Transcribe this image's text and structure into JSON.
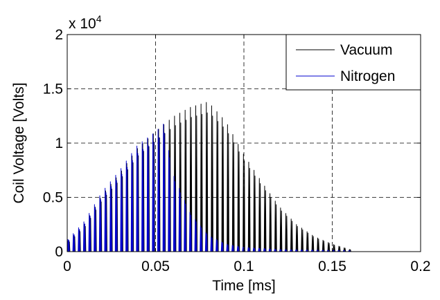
{
  "chart_data": {
    "type": "line",
    "xlabel": "Time [ms]",
    "ylabel": "Coil Voltage [Volts]",
    "y_multiplier_label": "x 10",
    "y_multiplier_exponent": "4",
    "xlim": [
      0,
      0.2
    ],
    "ylim": [
      0,
      2
    ],
    "x_ticks": [
      "0",
      "0.05",
      "0.1",
      "0.15",
      "0.2"
    ],
    "y_ticks": [
      "0",
      "0.5",
      "1",
      "1.5",
      "2"
    ],
    "x_tick_values": [
      0,
      0.05,
      0.1,
      0.15,
      0.2
    ],
    "y_tick_values": [
      0,
      0.5,
      1,
      1.5,
      2
    ],
    "grid": true,
    "grid_style": "dashed",
    "legend_position": "top-right",
    "series": [
      {
        "name": "Vacuum",
        "color": "#000000",
        "pulse_period": 0.003,
        "pulse_start": 0.001,
        "pulse_end": 0.162,
        "envelope": [
          [
            0.0,
            0.08
          ],
          [
            0.01,
            0.25
          ],
          [
            0.02,
            0.52
          ],
          [
            0.03,
            0.72
          ],
          [
            0.04,
            0.95
          ],
          [
            0.05,
            1.1
          ],
          [
            0.06,
            1.24
          ],
          [
            0.07,
            1.33
          ],
          [
            0.08,
            1.38
          ],
          [
            0.09,
            1.2
          ],
          [
            0.1,
            0.9
          ],
          [
            0.11,
            0.65
          ],
          [
            0.12,
            0.42
          ],
          [
            0.13,
            0.25
          ],
          [
            0.14,
            0.14
          ],
          [
            0.15,
            0.07
          ],
          [
            0.16,
            0.02
          ]
        ]
      },
      {
        "name": "Nitrogen",
        "color": "#0000cc",
        "pulse_period": 0.003,
        "pulse_start": 0.0007,
        "pulse_end": 0.16,
        "envelope": [
          [
            0.0,
            0.1
          ],
          [
            0.01,
            0.28
          ],
          [
            0.02,
            0.55
          ],
          [
            0.03,
            0.75
          ],
          [
            0.04,
            0.98
          ],
          [
            0.05,
            1.1
          ],
          [
            0.055,
            1.18
          ],
          [
            0.06,
            0.72
          ],
          [
            0.07,
            0.35
          ],
          [
            0.08,
            0.15
          ],
          [
            0.09,
            0.07
          ],
          [
            0.1,
            0.04
          ],
          [
            0.12,
            0.02
          ],
          [
            0.16,
            0.01
          ]
        ]
      }
    ]
  }
}
